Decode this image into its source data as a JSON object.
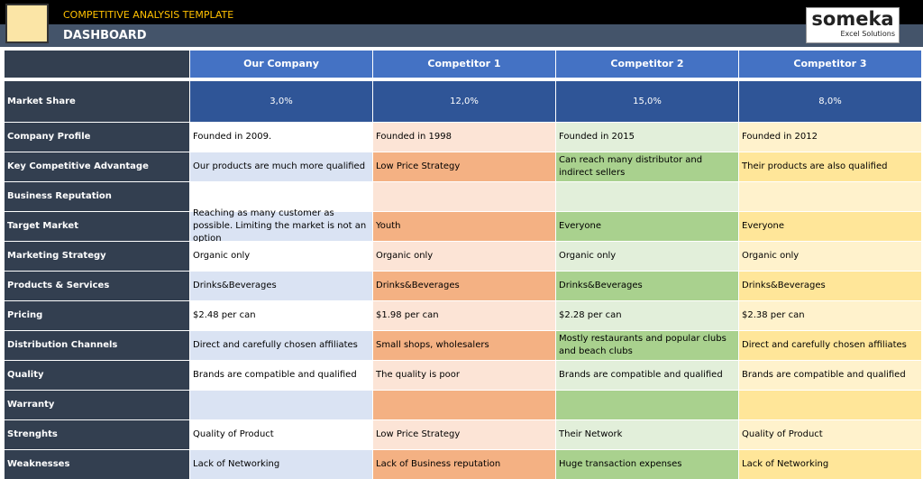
{
  "header": {
    "title": "COMPETITIVE ANALYSIS TEMPLATE",
    "subtitle": "DASHBOARD",
    "logo": "someka",
    "logo_sub": "Excel Solutions"
  },
  "table": {
    "columns": [
      "Our Company",
      "Competitor 1",
      "Competitor 2",
      "Competitor 3"
    ],
    "rows": [
      [
        "Market Share",
        "3,0%",
        "12,0%",
        "15,0%",
        "8,0%"
      ],
      [
        "Company Profile",
        "Founded in 2009.",
        "Founded in 1998",
        "Founded in 2015",
        "Founded in 2012"
      ],
      [
        "Key Competitive Advantage",
        "Our products are much more qualified",
        "Low Price Strategy",
        "Can reach many distributor and indirect sellers",
        "Their products are also qualified"
      ],
      [
        "Business Reputation"
      ],
      [
        "Target Market",
        "Reaching as many customer as possible. Limiting the market is not an option",
        "Youth",
        "Everyone",
        "Everyone"
      ],
      [
        "Marketing Strategy",
        "Organic only",
        "Organic only",
        "Organic only",
        "Organic only"
      ],
      [
        "Products & Services",
        "Drinks&Beverages",
        "Drinks&Beverages",
        "Drinks&Beverages",
        "Drinks&Beverages"
      ],
      [
        "Pricing",
        "$2.48 per can",
        "$1.98 per can",
        "$2.28 per can",
        "$2.38 per can"
      ],
      [
        "Distribution Channels",
        "Direct and carefully chosen affiliates",
        "Small shops, wholesalers",
        "Mostly restaurants and popular clubs and beach clubs",
        "Direct and carefully chosen affiliates"
      ],
      [
        "Quality",
        "Brands are compatible and qualified",
        "The quality is poor",
        "Brands are compatible and qualified",
        "Brands are compatible and qualified"
      ],
      [
        "Warranty"
      ],
      [
        "Strenghts",
        "Quality of Product",
        "Low Price Strategy",
        "Their Network",
        "Quality of Product"
      ],
      [
        "Weaknesses",
        "Lack of Networking",
        "Lack of  Business reputation",
        "Huge transaction expenses",
        "Lack of Networking"
      ]
    ]
  }
}
